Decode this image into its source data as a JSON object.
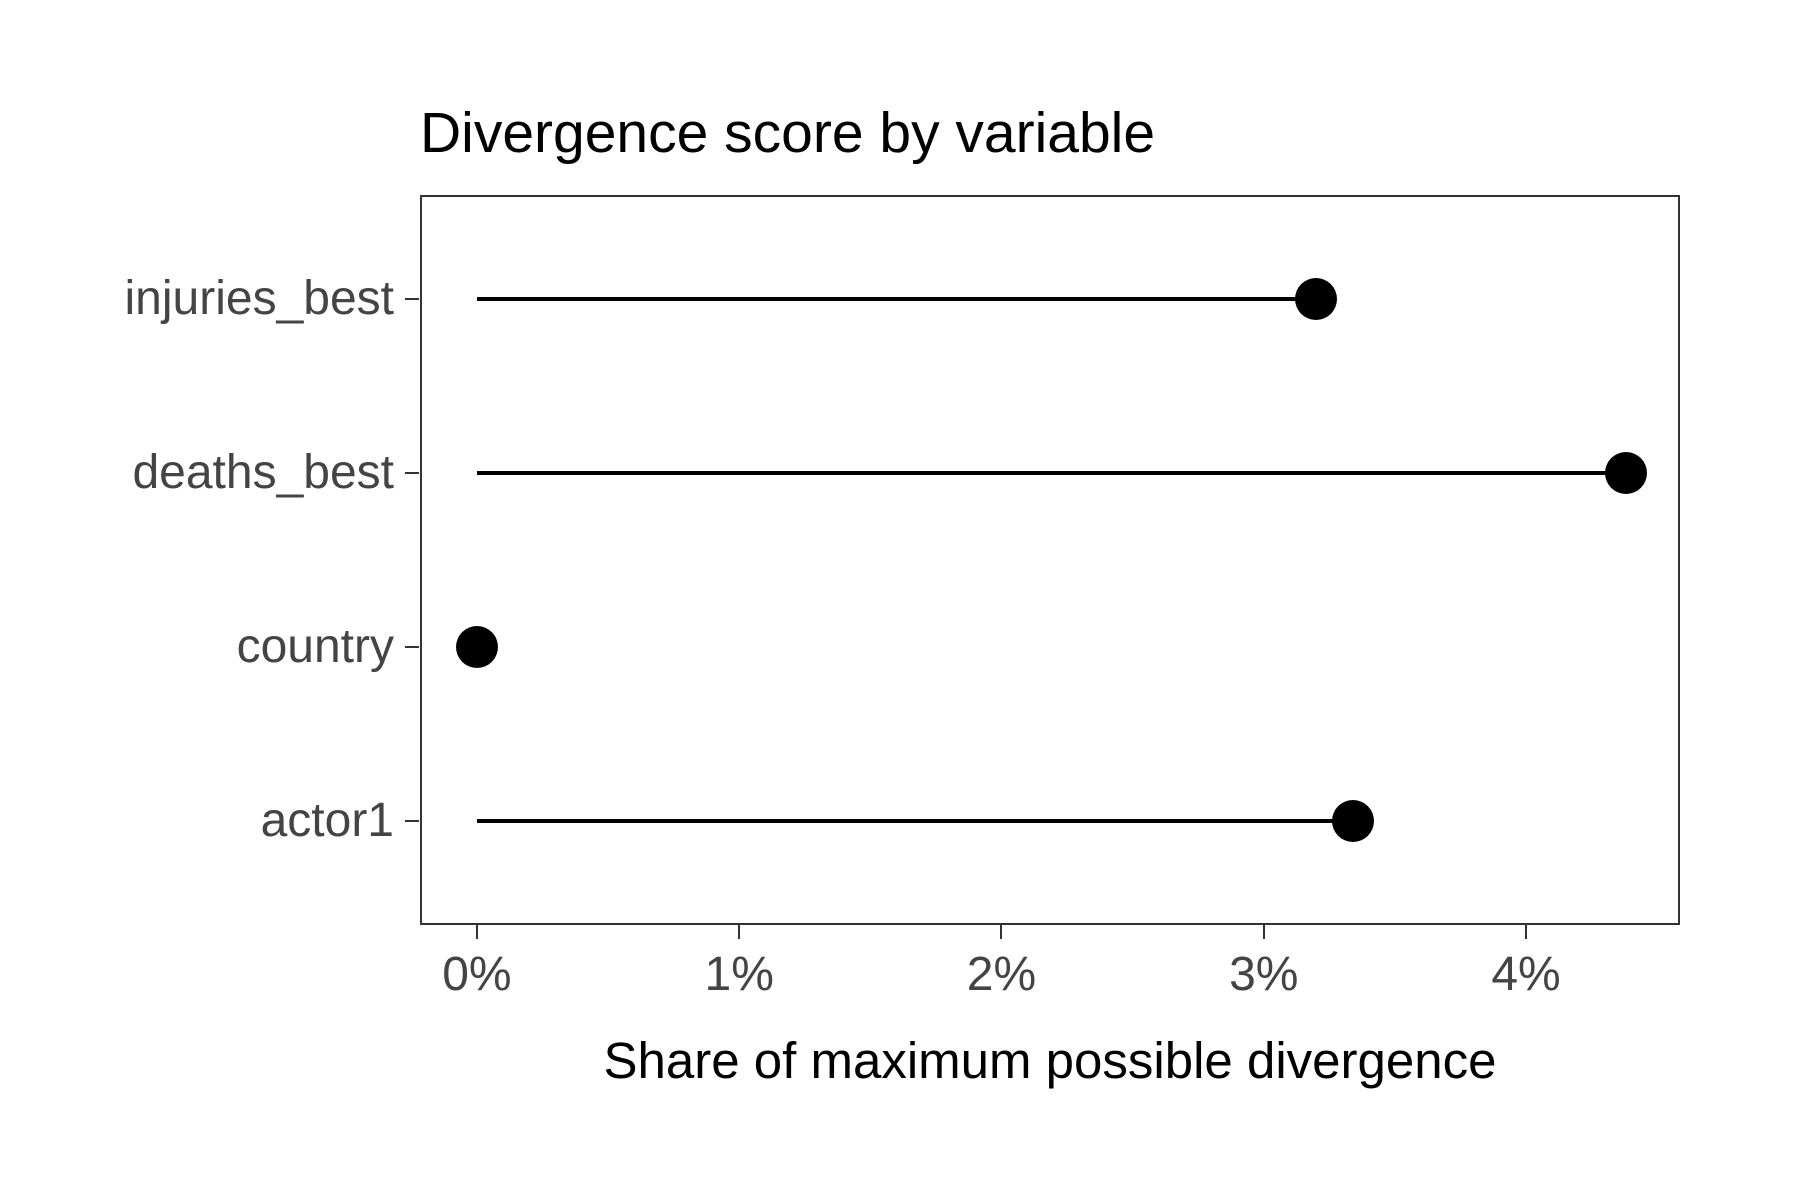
{
  "chart_data": {
    "type": "lollipop",
    "base_type": "scatter",
    "title": "Divergence score by variable",
    "xlabel": "Share of maximum possible divergence",
    "ylabel": "",
    "categories": [
      "injuries_best",
      "deaths_best",
      "country",
      "actor1"
    ],
    "values": [
      3.2,
      4.38,
      0,
      3.34
    ],
    "value_unit": "percent",
    "x_ticks": [
      0,
      1,
      2,
      3,
      4
    ],
    "x_tick_labels": [
      "0%",
      "1%",
      "2%",
      "3%",
      "4%"
    ],
    "xlim": [
      -0.217,
      4.587
    ],
    "grid": "off",
    "legend": "none",
    "colors": {
      "mark": "#000000",
      "axis_text": "#444444",
      "axis_title": "#000000",
      "title": "#000000",
      "panel_border": "#333333",
      "tick_mark": "#333333",
      "background": "#ffffff"
    }
  }
}
